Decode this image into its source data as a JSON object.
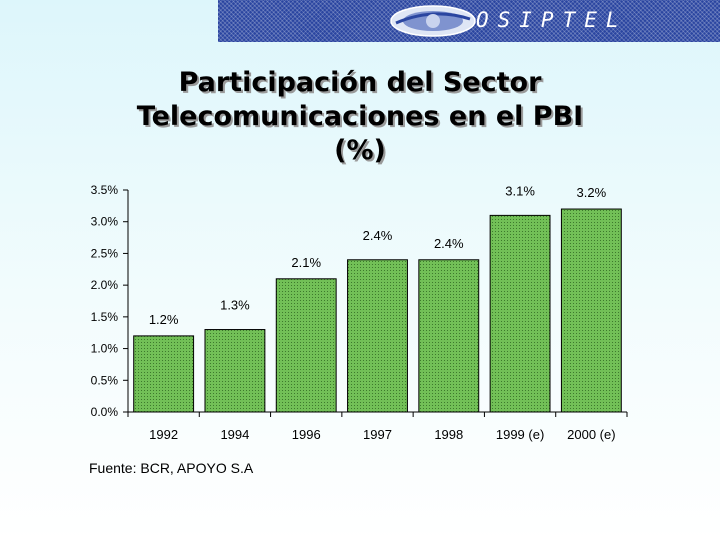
{
  "logo": {
    "text": "OSIPTEL"
  },
  "title_lines": [
    "Participación del Sector",
    "Telecomunicaciones en el PBI",
    "(%)"
  ],
  "footer": {
    "source": "Fuente: BCR, APOYO S.A"
  },
  "colors": {
    "bar_fill": "#72c057",
    "bar_dots": "#3d7a2c",
    "banner": "#2a45a0"
  },
  "chart_data": {
    "type": "bar",
    "title": "Participación del Sector Telecomunicaciones en el PBI (%)",
    "categories": [
      "1992",
      "1994",
      "1996",
      "1997",
      "1998",
      "1999 (e)",
      "2000 (e)"
    ],
    "values": [
      1.2,
      1.3,
      2.1,
      2.4,
      2.4,
      3.1,
      3.2
    ],
    "value_labels": [
      "1.2%",
      "1.3%",
      "2.1%",
      "2.4%",
      "2.4%",
      "3.1%",
      "3.2%"
    ],
    "ylim": [
      0,
      3.5
    ],
    "yticks": [
      0,
      0.5,
      1.0,
      1.5,
      2.0,
      2.5,
      3.0,
      3.5
    ],
    "ytick_labels": [
      "0.0%",
      "0.5%",
      "1.0%",
      "1.5%",
      "2.0%",
      "2.5%",
      "3.0%",
      "3.5%"
    ],
    "grid": false,
    "legend": "none"
  }
}
